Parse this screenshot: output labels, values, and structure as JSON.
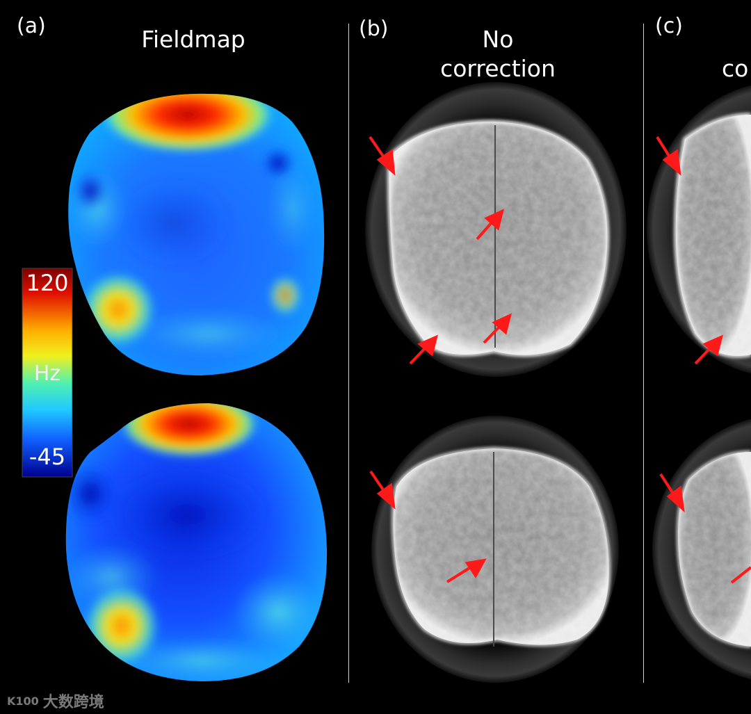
{
  "panels": [
    {
      "label": "(a)",
      "title": "Fieldmap"
    },
    {
      "label": "(b)",
      "title_line1": "No",
      "title_line2": "correction"
    },
    {
      "label": "(c)",
      "title_partial": "co"
    }
  ],
  "colorbar": {
    "max": "120",
    "unit": "Hz",
    "min": "-45"
  },
  "watermark": {
    "logo": "K100",
    "text": "大数跨境"
  },
  "colors": {
    "background": "#000000",
    "arrow": "#ff1a1a",
    "divider": "#cfcfcf"
  }
}
